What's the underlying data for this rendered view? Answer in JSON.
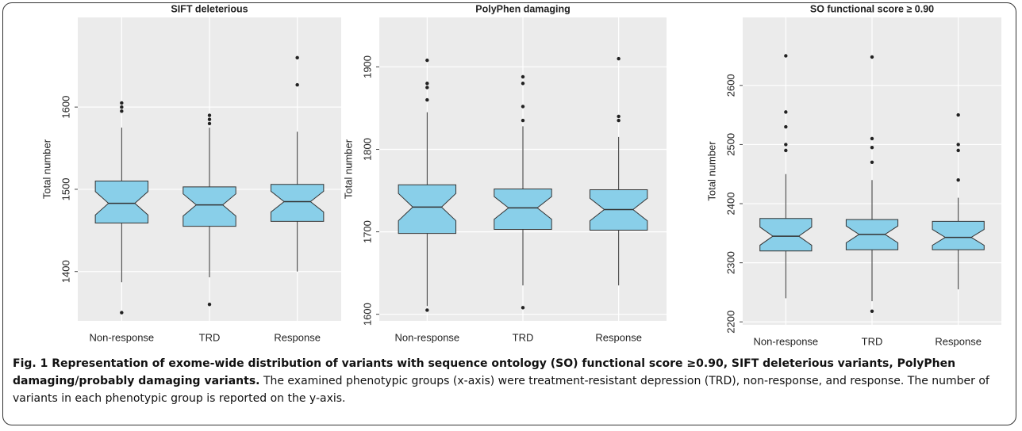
{
  "chart_data": [
    {
      "type": "box",
      "title": "SIFT deleterious",
      "y_label": "Total number",
      "color": "#89cfe9",
      "flier_color": "#222",
      "categories": [
        "Non-response",
        "TRD",
        "Response"
      ],
      "boxes": [
        {
          "whislo": 1387,
          "q1": 1459,
          "med": 1483,
          "q3": 1510,
          "whishi": 1575,
          "fliers": [
            1605,
            1600,
            1595,
            1350
          ]
        },
        {
          "whislo": 1393,
          "q1": 1455,
          "med": 1481,
          "q3": 1503,
          "whishi": 1575,
          "fliers": [
            1590,
            1585,
            1580,
            1360
          ]
        },
        {
          "whislo": 1400,
          "q1": 1461,
          "med": 1485,
          "q3": 1506,
          "whishi": 1570,
          "fliers": [
            1660,
            1627
          ]
        }
      ],
      "ylim": [
        1340,
        1709
      ],
      "yticks": [
        1400,
        1500,
        1600
      ],
      "grid": true
    },
    {
      "type": "box",
      "title": "PolyPhen damaging",
      "y_label": "Total number",
      "color": "#89cfe9",
      "flier_color": "#222",
      "categories": [
        "Non-response",
        "TRD",
        "Response"
      ],
      "boxes": [
        {
          "whislo": 1610,
          "q1": 1698,
          "med": 1730,
          "q3": 1757,
          "whishi": 1845,
          "fliers": [
            1908,
            1880,
            1875,
            1860,
            1605
          ]
        },
        {
          "whislo": 1635,
          "q1": 1703,
          "med": 1729,
          "q3": 1752,
          "whishi": 1828,
          "fliers": [
            1888,
            1880,
            1852,
            1835,
            1608
          ]
        },
        {
          "whislo": 1635,
          "q1": 1702,
          "med": 1727,
          "q3": 1751,
          "whishi": 1815,
          "fliers": [
            1910,
            1840,
            1835
          ]
        }
      ],
      "ylim": [
        1592,
        1960
      ],
      "yticks": [
        1600,
        1700,
        1800,
        1900
      ],
      "grid": true
    },
    {
      "type": "box",
      "title": "SO functional score ≥ 0.90",
      "y_label": "Total number",
      "color": "#89cfe9",
      "flier_color": "#222",
      "categories": [
        "Non-response",
        "TRD",
        "Response"
      ],
      "boxes": [
        {
          "whislo": 2240,
          "q1": 2320,
          "med": 2345,
          "q3": 2375,
          "whishi": 2450,
          "fliers": [
            2650,
            2555,
            2530,
            2500,
            2490
          ]
        },
        {
          "whislo": 2235,
          "q1": 2322,
          "med": 2348,
          "q3": 2373,
          "whishi": 2440,
          "fliers": [
            2648,
            2510,
            2495,
            2470,
            2218
          ]
        },
        {
          "whislo": 2255,
          "q1": 2322,
          "med": 2343,
          "q3": 2370,
          "whishi": 2410,
          "fliers": [
            2550,
            2500,
            2490,
            2440
          ]
        }
      ],
      "ylim": [
        2195,
        2715
      ],
      "yticks": [
        2200,
        2300,
        2400,
        2500,
        2600
      ],
      "grid": true
    }
  ],
  "caption": {
    "title": "Fig. 1 Representation of exome-wide distribution of variants with sequence ontology (SO) functional score ≥0.90, SIFT deleterious variants, PolyPhen damaging/probably damaging variants.",
    "text": "The examined phenotypic groups (x-axis) were treatment-resistant depression (TRD), non-response, and response. The number of variants in each phenotypic group is reported on the y-axis."
  }
}
